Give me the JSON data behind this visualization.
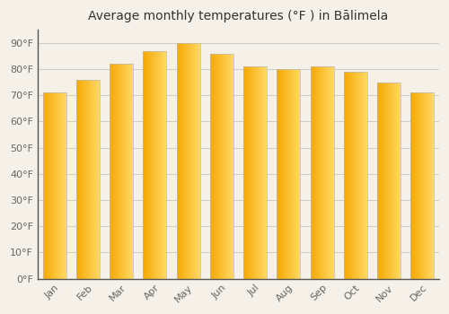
{
  "title": "Average monthly temperatures (°F ) in Bālimela",
  "months": [
    "Jan",
    "Feb",
    "Mar",
    "Apr",
    "May",
    "Jun",
    "Jul",
    "Aug",
    "Sep",
    "Oct",
    "Nov",
    "Dec"
  ],
  "values": [
    71,
    76,
    82,
    87,
    90,
    86,
    81,
    80,
    81,
    79,
    75,
    71
  ],
  "ylim": [
    0,
    95
  ],
  "yticks": [
    0,
    10,
    20,
    30,
    40,
    50,
    60,
    70,
    80,
    90
  ],
  "ytick_labels": [
    "0°F",
    "10°F",
    "20°F",
    "30°F",
    "40°F",
    "50°F",
    "60°F",
    "70°F",
    "80°F",
    "90°F"
  ],
  "background_color": "#f5f0e8",
  "grid_color": "#cccccc",
  "title_fontsize": 10,
  "tick_fontsize": 8,
  "bar_color_left": "#F5A800",
  "bar_color_right": "#FFD966",
  "bar_edge_color": "#bbbbbb",
  "bar_width": 0.7,
  "spine_color": "#555555",
  "tick_color": "#666666"
}
